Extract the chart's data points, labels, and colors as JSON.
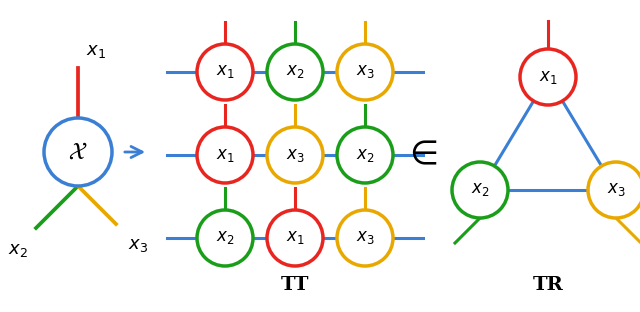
{
  "bg_color": "#ffffff",
  "blue": "#3b7fd4",
  "red": "#e8251f",
  "green": "#1a9e1a",
  "yellow": "#e8a800",
  "tt_rows": [
    [
      "red",
      "green",
      "yellow"
    ],
    [
      "red",
      "yellow",
      "green"
    ],
    [
      "green",
      "red",
      "yellow"
    ]
  ],
  "tt_labels": [
    [
      "x_1",
      "x_2",
      "x_3"
    ],
    [
      "x_1",
      "x_3",
      "x_2"
    ],
    [
      "x_2",
      "x_1",
      "x_3"
    ]
  ],
  "tt_label": "TT",
  "tr_label": "TR"
}
